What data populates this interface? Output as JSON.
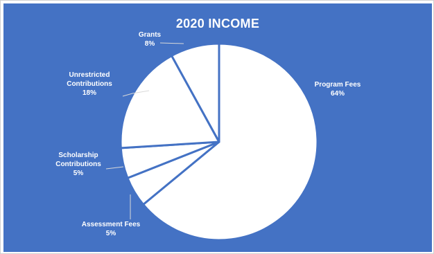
{
  "chart_data": {
    "type": "pie",
    "title": "2020 INCOME",
    "slices": [
      {
        "name": "Program Fees",
        "value": 64,
        "label": "64%",
        "label_lines": [
          "Program Fees",
          "64%"
        ]
      },
      {
        "name": "Assessment Fees",
        "value": 5,
        "label": "5%",
        "label_lines": [
          "Assessment Fees",
          "5%"
        ]
      },
      {
        "name": "Scholarship Contributions",
        "value": 5,
        "label": "5%",
        "label_lines": [
          "Scholarship",
          "Contributions",
          "5%"
        ]
      },
      {
        "name": "Unrestricted Contributions",
        "value": 18,
        "label": "18%",
        "label_lines": [
          "Unrestricted",
          "Contributions",
          "18%"
        ]
      },
      {
        "name": "Grants",
        "value": 8,
        "label": "8%",
        "label_lines": [
          "Grants",
          "8%"
        ]
      }
    ],
    "start_angle": "12 o'clock, clockwise",
    "slice_fill": "#ffffff",
    "slice_separator": "#4472c4",
    "background": "#4472c4",
    "legend": "none, data labels outside"
  }
}
